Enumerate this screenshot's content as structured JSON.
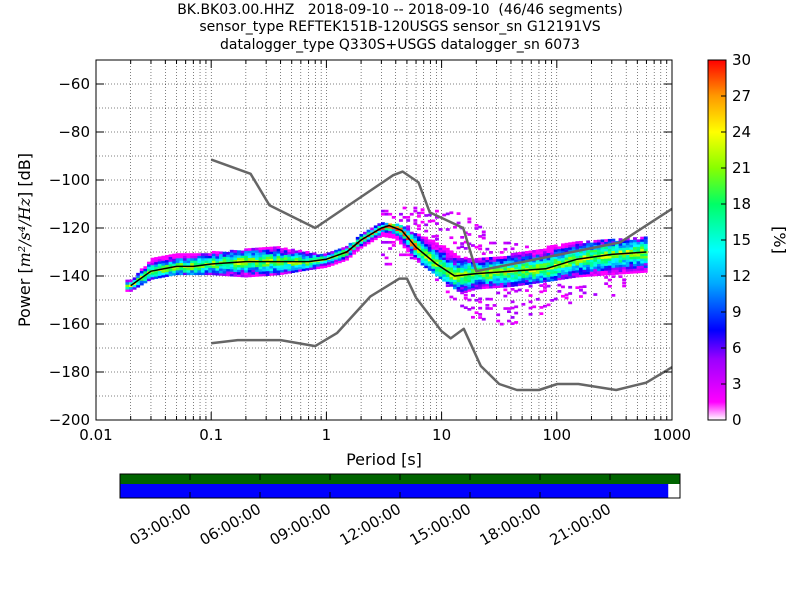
{
  "title": {
    "line1": "BK.BK03.00.HHZ   2018-09-10 -- 2018-09-10  (46/46 segments)",
    "line2": "sensor_type REFTEK151B-120USGS sensor_sn G12191VS",
    "line3": "datalogger_type Q330S+USGS datalogger_sn 6073"
  },
  "chart_data": {
    "type": "heatmap",
    "subtype": "ppsd-probabilistic-power-spectral-density",
    "xlabel": "Period [s]",
    "ylabel_prefix": "Power [",
    "ylabel_math": "m²/s⁴/Hz",
    "ylabel_suffix": "] [dB]",
    "x_scale": "log",
    "xlim": [
      0.01,
      1000
    ],
    "ylim": [
      -200,
      -50
    ],
    "x_ticks": [
      {
        "value": 0.01,
        "label": "0.01"
      },
      {
        "value": 0.1,
        "label": "0.1"
      },
      {
        "value": 1,
        "label": "1"
      },
      {
        "value": 10,
        "label": "10"
      },
      {
        "value": 100,
        "label": "100"
      },
      {
        "value": 1000,
        "label": "1000"
      }
    ],
    "y_ticks": [
      {
        "value": -60,
        "label": "−60"
      },
      {
        "value": -80,
        "label": "−80"
      },
      {
        "value": -100,
        "label": "−100"
      },
      {
        "value": -120,
        "label": "−120"
      },
      {
        "value": -140,
        "label": "−140"
      },
      {
        "value": -160,
        "label": "−160"
      },
      {
        "value": -180,
        "label": "−180"
      },
      {
        "value": -200,
        "label": "−200"
      }
    ],
    "grid": "dotted",
    "new_high_noise_model": [
      [
        0.1,
        -91.5
      ],
      [
        0.22,
        -97.4
      ],
      [
        0.32,
        -110.5
      ],
      [
        0.8,
        -120
      ],
      [
        3.8,
        -98
      ],
      [
        4.6,
        -96.5
      ],
      [
        6.3,
        -101
      ],
      [
        7.9,
        -113.5
      ],
      [
        15.4,
        -120
      ],
      [
        20,
        -138
      ],
      [
        354.8,
        -126
      ],
      [
        1000,
        -112
      ]
    ],
    "new_low_noise_model": [
      [
        0.1,
        -168
      ],
      [
        0.17,
        -166.7
      ],
      [
        0.4,
        -166.7
      ],
      [
        0.8,
        -169.2
      ],
      [
        1.24,
        -163.7
      ],
      [
        2.4,
        -148.6
      ],
      [
        4.3,
        -141.1
      ],
      [
        5,
        -141.1
      ],
      [
        6,
        -149
      ],
      [
        10,
        -163
      ],
      [
        12,
        -166
      ],
      [
        15.6,
        -162
      ],
      [
        21.9,
        -177.5
      ],
      [
        31.6,
        -185
      ],
      [
        45,
        -187.5
      ],
      [
        70,
        -187.5
      ],
      [
        101,
        -185
      ],
      [
        154,
        -185
      ],
      [
        328,
        -187.5
      ],
      [
        600,
        -184.4
      ],
      [
        1000,
        -178
      ]
    ],
    "mode_line": [
      [
        0.02,
        -144
      ],
      [
        0.03,
        -138
      ],
      [
        0.05,
        -136
      ],
      [
        0.07,
        -136
      ],
      [
        0.1,
        -135
      ],
      [
        0.2,
        -134
      ],
      [
        0.4,
        -134
      ],
      [
        0.7,
        -134
      ],
      [
        1,
        -133
      ],
      [
        1.5,
        -130
      ],
      [
        2,
        -125
      ],
      [
        3,
        -120
      ],
      [
        3.5,
        -119
      ],
      [
        4.5,
        -121
      ],
      [
        6,
        -128
      ],
      [
        9,
        -135
      ],
      [
        13,
        -140
      ],
      [
        20,
        -139
      ],
      [
        40,
        -138
      ],
      [
        80,
        -137
      ],
      [
        150,
        -133
      ],
      [
        300,
        -131
      ],
      [
        600,
        -130
      ]
    ],
    "pdf_band_upper": [
      [
        0.02,
        -142
      ],
      [
        0.03,
        -133
      ],
      [
        0.05,
        -131
      ],
      [
        0.1,
        -130
      ],
      [
        0.2,
        -129
      ],
      [
        0.4,
        -128
      ],
      [
        0.7,
        -130
      ],
      [
        1,
        -131
      ],
      [
        1.5,
        -128
      ],
      [
        2,
        -123
      ],
      [
        3,
        -118
      ],
      [
        4,
        -118
      ],
      [
        6,
        -122
      ],
      [
        10,
        -127
      ],
      [
        15,
        -132
      ],
      [
        20,
        -133
      ],
      [
        40,
        -131
      ],
      [
        80,
        -128
      ],
      [
        150,
        -126
      ],
      [
        300,
        -125
      ],
      [
        600,
        -124
      ]
    ],
    "pdf_band_lower": [
      [
        0.02,
        -146
      ],
      [
        0.03,
        -141
      ],
      [
        0.05,
        -139
      ],
      [
        0.1,
        -139
      ],
      [
        0.2,
        -140
      ],
      [
        0.4,
        -139
      ],
      [
        0.7,
        -137
      ],
      [
        1,
        -136
      ],
      [
        1.5,
        -133
      ],
      [
        2,
        -128
      ],
      [
        3,
        -123
      ],
      [
        4,
        -124
      ],
      [
        6,
        -133
      ],
      [
        10,
        -141
      ],
      [
        15,
        -147
      ],
      [
        20,
        -145
      ],
      [
        40,
        -144
      ],
      [
        80,
        -142
      ],
      [
        150,
        -140
      ],
      [
        300,
        -139
      ],
      [
        600,
        -138
      ]
    ],
    "scatter_envelope_upper": [
      [
        3,
        -113
      ],
      [
        5,
        -111
      ],
      [
        8,
        -111
      ],
      [
        12,
        -111
      ],
      [
        20,
        -118
      ],
      [
        30,
        -124
      ],
      [
        60,
        -128
      ]
    ],
    "scatter_envelope_lower": [
      [
        6,
        -135
      ],
      [
        10,
        -143
      ],
      [
        15,
        -155
      ],
      [
        25,
        -160
      ],
      [
        40,
        -160
      ],
      [
        80,
        -155
      ],
      [
        150,
        -150
      ],
      [
        300,
        -148
      ]
    ],
    "colorbar": {
      "label": "[%]",
      "range": [
        0,
        30
      ],
      "ticks": [
        {
          "value": 0,
          "label": "0"
        },
        {
          "value": 3,
          "label": "3"
        },
        {
          "value": 6,
          "label": "6"
        },
        {
          "value": 9,
          "label": "9"
        },
        {
          "value": 12,
          "label": "12"
        },
        {
          "value": 15,
          "label": "15"
        },
        {
          "value": 18,
          "label": "18"
        },
        {
          "value": 21,
          "label": "21"
        },
        {
          "value": 24,
          "label": "24"
        },
        {
          "value": 27,
          "label": "27"
        },
        {
          "value": 30,
          "label": "30"
        }
      ],
      "colormap_stops": [
        {
          "pos": 0.0,
          "color": "#ffffff"
        },
        {
          "pos": 0.05,
          "color": "#ff00ff"
        },
        {
          "pos": 0.17,
          "color": "#9a00ff"
        },
        {
          "pos": 0.25,
          "color": "#0000ff"
        },
        {
          "pos": 0.38,
          "color": "#00aaff"
        },
        {
          "pos": 0.47,
          "color": "#00ffff"
        },
        {
          "pos": 0.6,
          "color": "#00ff66"
        },
        {
          "pos": 0.7,
          "color": "#88ff00"
        },
        {
          "pos": 0.8,
          "color": "#ffff00"
        },
        {
          "pos": 0.9,
          "color": "#ff9900"
        },
        {
          "pos": 1.0,
          "color": "#ff0000"
        }
      ]
    },
    "time_coverage": {
      "x_tick_labels": [
        "03:00:00",
        "06:00:00",
        "09:00:00",
        "12:00:00",
        "15:00:00",
        "18:00:00",
        "21:00:00"
      ],
      "data_color": "#006400",
      "segments_color": "#0000ff",
      "segments_fraction": 0.979
    },
    "colors": {
      "noise_model": "#666666",
      "mode_line": "#000000"
    }
  }
}
